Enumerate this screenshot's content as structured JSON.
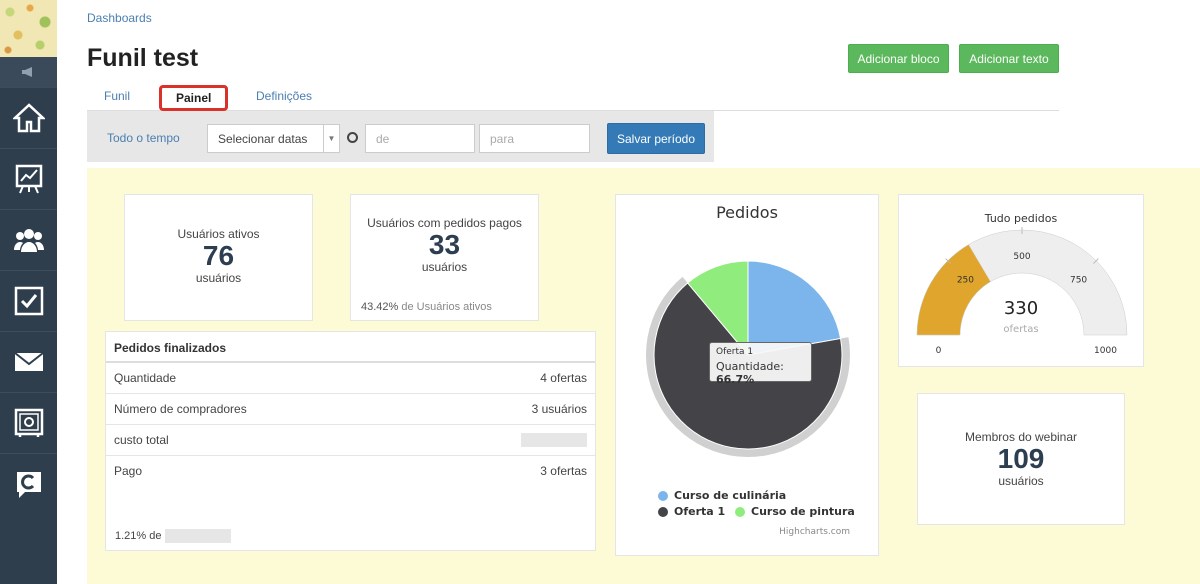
{
  "breadcrumb": "Dashboards",
  "page_title": "Funil test",
  "actions": {
    "add_block": "Adicionar bloco",
    "add_text": "Adicionar texto"
  },
  "tabs": [
    {
      "label": "Funil"
    },
    {
      "label": "Painel"
    },
    {
      "label": "Definições"
    }
  ],
  "filter": {
    "all_time": "Todo o tempo",
    "select_dates": "Selecionar datas",
    "from_placeholder": "de",
    "to_placeholder": "para",
    "save_period": "Salvar período"
  },
  "widgets": {
    "active_users": {
      "label": "Usuários ativos",
      "value": "76",
      "unit": "usuários"
    },
    "paid_users": {
      "label": "Usuários com pedidos pagos",
      "value": "33",
      "unit": "usuários",
      "footer_pct": "43.42%",
      "footer_text": "de Usuários ativos"
    },
    "orders_table": {
      "title": "Pedidos finalizados",
      "rows": [
        {
          "label": "Quantidade",
          "value": "4 ofertas"
        },
        {
          "label": "Número de compradores",
          "value": "3 usuários"
        },
        {
          "label": "custo total",
          "value": ""
        },
        {
          "label": "Pago",
          "value": "3 ofertas"
        }
      ],
      "footer_pct": "1.21% de"
    },
    "webinar": {
      "label": "Membros do webinar",
      "value": "109",
      "unit": "usuários"
    }
  },
  "chart_data": [
    {
      "type": "pie",
      "title": "Pedidos",
      "series": [
        {
          "name": "Curso de culinária",
          "value": 22.2,
          "color": "#7cb5ec"
        },
        {
          "name": "Oferta 1",
          "value": 66.7,
          "color": "#434348"
        },
        {
          "name": "Curso de pintura",
          "value": 11.1,
          "color": "#90ed7d"
        }
      ],
      "tooltip": {
        "title": "Oferta 1",
        "label": "Quantidade:",
        "value": "66.7%"
      },
      "credits": "Highcharts.com"
    },
    {
      "type": "gauge",
      "title": "Tudo pedidos",
      "value": 330,
      "value_text": "330",
      "unit": "ofertas",
      "min": 0,
      "max": 1000,
      "ticks": [
        "0",
        "250",
        "500",
        "750",
        "1000"
      ],
      "color": "#e0a52c"
    }
  ]
}
